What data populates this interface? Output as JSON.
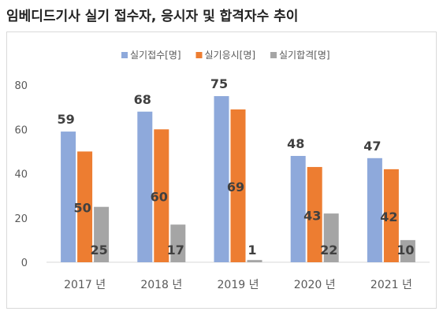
{
  "title": "임베디드기사 실기 접수자, 응시자 및 합격자수 추이",
  "chart_data": {
    "type": "bar",
    "categories": [
      "2017 년",
      "2018 년",
      "2019 년",
      "2020 년",
      "2021 년"
    ],
    "series": [
      {
        "name": "실기접수[명]",
        "color": "#8EA9DB",
        "values": [
          59,
          68,
          75,
          48,
          47
        ]
      },
      {
        "name": "실기응시[명]",
        "color": "#ED7D31",
        "values": [
          50,
          60,
          69,
          43,
          42
        ]
      },
      {
        "name": "실기합격[명]",
        "color": "#A5A5A5",
        "values": [
          25,
          17,
          1,
          22,
          10
        ]
      }
    ],
    "ylim": [
      0,
      80
    ],
    "yticks": [
      0,
      20,
      40,
      60,
      80
    ],
    "legend_position": "top-center",
    "grid": false,
    "data_label_color": "#404040"
  }
}
